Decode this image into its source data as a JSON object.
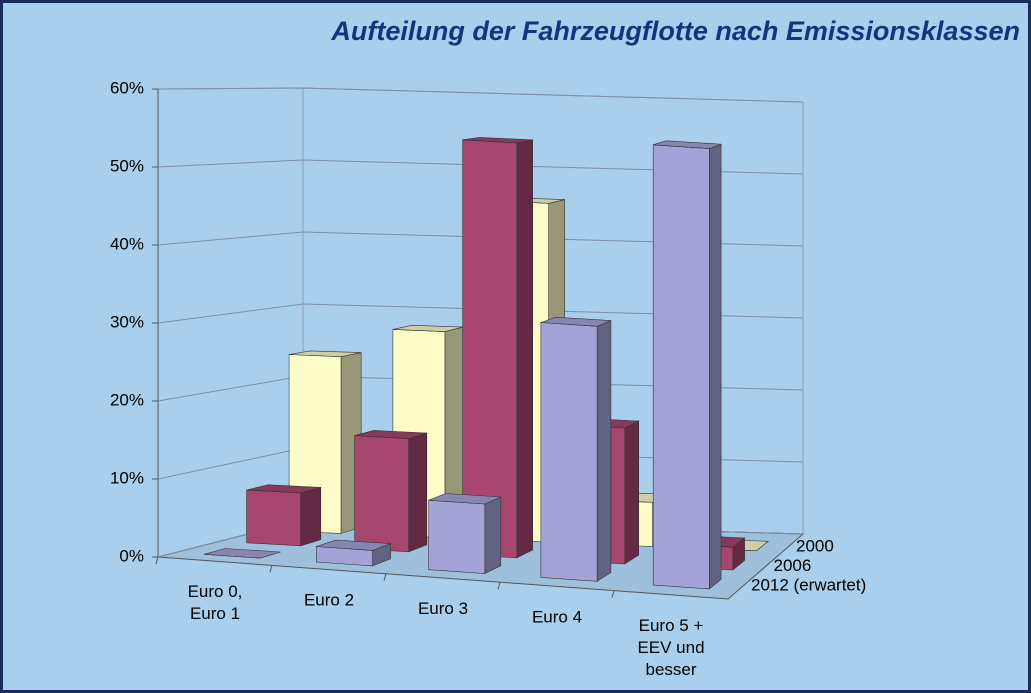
{
  "chart_data": {
    "type": "bar3d",
    "title": "Aufteilung der Fahrzeugflotte nach Emissionsklassen",
    "categories": [
      "Euro 0,\nEuro 1",
      "Euro 2",
      "Euro 3",
      "Euro 4",
      "Euro 5 +\nEEV und\nbesser"
    ],
    "series": [
      {
        "name": "2000",
        "color": "#fdfbc8",
        "values": [
          24,
          28,
          46,
          6,
          0
        ]
      },
      {
        "name": "2006",
        "color": "#a6466f",
        "values": [
          7,
          15,
          55,
          18,
          3
        ]
      },
      {
        "name": "2012 (erwartet)",
        "color": "#a3a3d8",
        "values": [
          0,
          2,
          9,
          33,
          57
        ]
      }
    ],
    "ylim": [
      0,
      60
    ],
    "yticks": [
      {
        "value": 0,
        "label": "0%"
      },
      {
        "value": 10,
        "label": "10%"
      },
      {
        "value": 20,
        "label": "20%"
      },
      {
        "value": 30,
        "label": "30%"
      },
      {
        "value": 40,
        "label": "40%"
      },
      {
        "value": 50,
        "label": "50%"
      },
      {
        "value": 60,
        "label": "60%"
      }
    ],
    "grid": true
  }
}
